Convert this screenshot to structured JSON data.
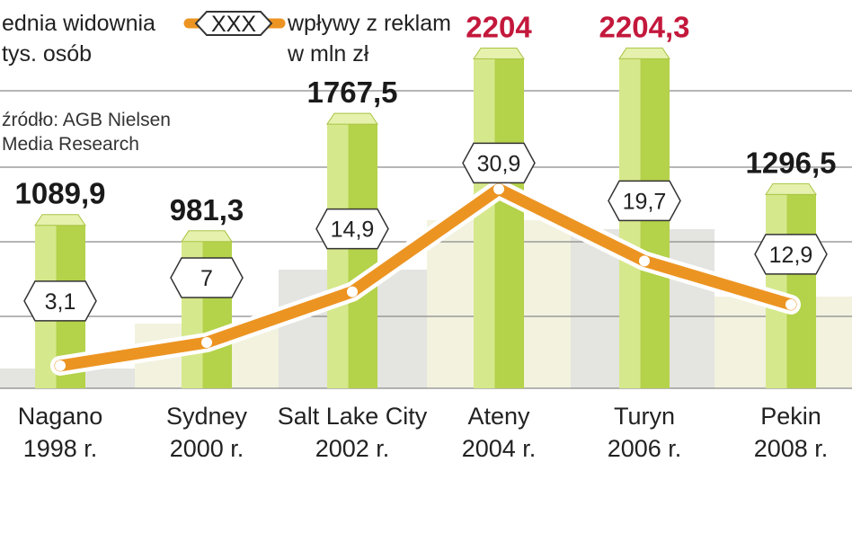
{
  "legend": {
    "bars_label_line1": "ednia widownia",
    "bars_label_line2": "tys. osób",
    "line_symbol_text": "XXX",
    "line_label_line1": "wpływy z reklam",
    "line_label_line2": "w mln zł"
  },
  "source": {
    "line1": "źródło: AGB Nielsen",
    "line2": "Media Research"
  },
  "colors": {
    "bar_main": "#b4d24a",
    "bar_light": "#d6e88c",
    "bar_top": "#e5f1ad",
    "line": "#ec9422",
    "value_normal": "#1a1a1a",
    "value_highlight": "#c3183c",
    "band_light": "#f2f2df",
    "band_gray": "#e4e4e0"
  },
  "chart_data": {
    "type": "bar",
    "categories": [
      [
        "Nagano",
        "1998 r."
      ],
      [
        "Sydney",
        "2000 r."
      ],
      [
        "Salt Lake City",
        "2002 r."
      ],
      [
        "Ateny",
        "2004 r."
      ],
      [
        "Turyn",
        "2006 r."
      ],
      [
        "Pekin",
        "2008 r."
      ]
    ],
    "series": [
      {
        "type": "bar",
        "values": [
          1089.9,
          981.3,
          1767.5,
          2204,
          2204.3,
          1296.5
        ],
        "labels": [
          "1089,9",
          "981,3",
          "1767,5",
          "2204",
          "2204,3",
          "1296,5"
        ],
        "highlight": [
          false,
          false,
          false,
          true,
          true,
          false
        ]
      },
      {
        "type": "line",
        "values": [
          3.1,
          7,
          14.9,
          30.9,
          19.7,
          12.9
        ],
        "labels": [
          "3,1",
          "7",
          "14,9",
          "30,9",
          "19,7",
          "12,9"
        ]
      }
    ],
    "grid": true,
    "legend_position": "top"
  }
}
